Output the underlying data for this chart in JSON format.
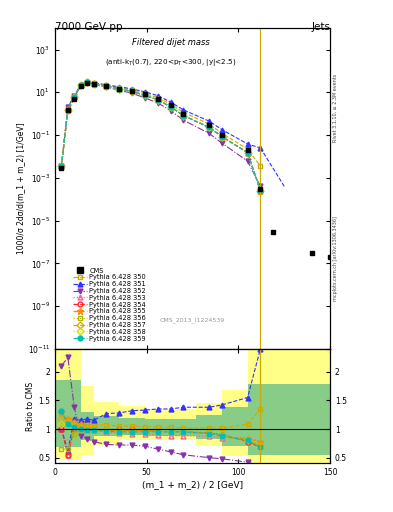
{
  "title_left": "7000 GeV pp",
  "title_right": "Jets",
  "ylabel_main": "1000/σ 2dσ/d(m_1 + m_2) [1/GeV]",
  "ylabel_ratio": "Ratio to CMS",
  "xlabel": "(m_1 + m_2) / 2 [GeV]",
  "plot_title": "Filtered dijet mass",
  "plot_subtitle": "(anti-k_{T}(0.7), 220<p_{T}<300, |y|<2.5)",
  "cms_watermark": "CMS_2013_I1224539",
  "right_label1": "Rivet 3.1.10, ≥ 2.3M events",
  "right_label2": "mcplots.cern.ch [arXiv:1306.3436]",
  "xlim": [
    0,
    150
  ],
  "ylim_main_log": [
    -11,
    4
  ],
  "ylim_ratio": [
    0.4,
    2.4
  ],
  "x_cms": [
    3.5,
    7.0,
    10.5,
    14.0,
    17.5,
    21.0,
    28.0,
    35.0,
    42.0,
    49.0,
    56.0,
    63.0,
    70.0,
    84.0,
    91.0,
    105.0,
    112.0,
    119.0,
    140.0,
    150.0
  ],
  "y_cms": [
    0.003,
    1.5,
    5.0,
    20.0,
    28.0,
    25.0,
    20.0,
    15.0,
    12.0,
    8.0,
    5.0,
    2.5,
    1.0,
    0.3,
    0.1,
    0.02,
    0.0003,
    3e-06,
    3e-07,
    2e-07
  ],
  "x_main": [
    3.5,
    7.0,
    10.5,
    14.0,
    17.5,
    21.0,
    28.0,
    35.0,
    42.0,
    49.0,
    56.0,
    63.0,
    70.0,
    84.0,
    91.0,
    105.0,
    112.0
  ],
  "series": [
    {
      "label": "Pythia 6.428 350",
      "color": "#ccaa00",
      "ls": "--",
      "marker": "s",
      "filled": false,
      "y_main": [
        0.0035,
        1.9,
        6.2,
        22.0,
        30.0,
        26.5,
        21.5,
        16.5,
        12.8,
        8.8,
        5.7,
        2.8,
        1.15,
        0.33,
        0.12,
        0.022,
        0.0035
      ],
      "y_ratio": [
        1.0,
        1.1,
        1.08,
        1.09,
        1.08,
        1.08,
        1.07,
        1.05,
        1.05,
        1.04,
        1.03,
        1.03,
        1.02,
        1.02,
        1.02,
        1.08,
        1.35
      ]
    },
    {
      "label": "Pythia 6.428 351",
      "color": "#3333ff",
      "ls": "--",
      "marker": "^",
      "filled": true,
      "y_main": [
        0.0035,
        1.9,
        6.8,
        23.0,
        31.0,
        27.5,
        22.5,
        18.0,
        14.5,
        10.5,
        7.0,
        3.5,
        1.5,
        0.45,
        0.18,
        0.038,
        0.025
      ],
      "y_ratio": [
        1.0,
        0.62,
        1.18,
        1.15,
        1.18,
        1.15,
        1.27,
        1.28,
        1.32,
        1.33,
        1.35,
        1.35,
        1.38,
        1.38,
        1.42,
        1.55,
        2.4
      ]
    },
    {
      "label": "Pythia 6.428 352",
      "color": "#8833aa",
      "ls": "-.",
      "marker": "v",
      "filled": true,
      "y_main": [
        0.0035,
        2.0,
        6.5,
        20.5,
        28.0,
        23.5,
        17.5,
        12.5,
        9.0,
        5.5,
        3.2,
        1.4,
        0.5,
        0.12,
        0.042,
        0.006,
        0.0004
      ],
      "y_ratio": [
        2.1,
        2.25,
        1.38,
        0.88,
        0.83,
        0.78,
        0.73,
        0.72,
        0.72,
        0.7,
        0.65,
        0.6,
        0.55,
        0.5,
        0.48,
        0.42,
        0.35
      ]
    },
    {
      "label": "Pythia 6.428 353",
      "color": "#ff55aa",
      "ls": ":",
      "marker": "^",
      "filled": false,
      "y_main": [
        0.0035,
        1.5,
        5.8,
        21.0,
        29.0,
        25.0,
        19.5,
        14.5,
        11.0,
        7.2,
        4.5,
        2.1,
        0.82,
        0.23,
        0.085,
        0.015,
        0.00025
      ],
      "y_ratio": [
        1.0,
        0.55,
        1.02,
        0.99,
        0.99,
        0.98,
        0.94,
        0.93,
        0.92,
        0.91,
        0.9,
        0.88,
        0.88,
        0.87,
        0.85,
        0.85,
        0.78
      ]
    },
    {
      "label": "Pythia 6.428 354",
      "color": "#ff2222",
      "ls": "--",
      "marker": "o",
      "filled": false,
      "y_main": [
        0.0035,
        1.5,
        5.8,
        21.0,
        29.0,
        25.0,
        19.5,
        14.5,
        11.0,
        7.2,
        4.5,
        2.1,
        0.82,
        0.23,
        0.085,
        0.015,
        0.00025
      ],
      "y_ratio": [
        1.0,
        0.55,
        1.02,
        0.99,
        1.02,
        0.99,
        0.96,
        0.98,
        0.98,
        0.97,
        0.96,
        0.95,
        0.95,
        0.93,
        0.9,
        0.78,
        0.68
      ]
    },
    {
      "label": "Pythia 6.428 355",
      "color": "#ff8800",
      "ls": "--",
      "marker": "*",
      "filled": true,
      "y_main": [
        0.0035,
        1.5,
        5.8,
        21.0,
        29.0,
        25.0,
        19.5,
        14.5,
        11.0,
        7.2,
        4.5,
        2.1,
        0.82,
        0.23,
        0.085,
        0.015,
        0.00025
      ],
      "y_ratio": [
        1.28,
        1.18,
        1.12,
        1.08,
        1.04,
        1.02,
        0.98,
        0.98,
        0.98,
        0.97,
        0.96,
        0.95,
        0.94,
        0.92,
        0.88,
        0.82,
        0.78
      ]
    },
    {
      "label": "Pythia 6.428 356",
      "color": "#aabb00",
      "ls": ":",
      "marker": "s",
      "filled": false,
      "y_main": [
        0.0035,
        1.5,
        5.8,
        21.0,
        29.0,
        25.0,
        19.5,
        14.5,
        11.0,
        7.2,
        4.5,
        2.1,
        0.82,
        0.23,
        0.085,
        0.015,
        0.00025
      ],
      "y_ratio": [
        0.65,
        0.65,
        0.92,
        0.98,
        0.98,
        0.98,
        0.96,
        0.95,
        0.95,
        0.95,
        0.95,
        0.95,
        0.95,
        0.94,
        0.9,
        0.82,
        0.68
      ]
    },
    {
      "label": "Pythia 6.428 357",
      "color": "#ddaa00",
      "ls": "--",
      "marker": "D",
      "filled": false,
      "y_main": [
        0.0035,
        1.5,
        5.8,
        21.0,
        29.0,
        25.0,
        19.5,
        14.5,
        11.0,
        7.2,
        4.5,
        2.1,
        0.82,
        0.23,
        0.085,
        0.015,
        0.00025
      ],
      "y_ratio": [
        1.18,
        1.12,
        1.08,
        1.03,
        1.01,
        1.0,
        0.98,
        0.97,
        0.97,
        0.97,
        0.96,
        0.95,
        0.94,
        0.92,
        0.88,
        0.8,
        0.72
      ]
    },
    {
      "label": "Pythia 6.428 358",
      "color": "#ccdd11",
      "ls": ":",
      "marker": "D",
      "filled": false,
      "y_main": [
        0.0035,
        1.5,
        5.8,
        21.0,
        29.0,
        25.0,
        19.5,
        14.5,
        11.0,
        7.2,
        4.5,
        2.1,
        0.82,
        0.23,
        0.085,
        0.015,
        0.00025
      ],
      "y_ratio": [
        1.08,
        1.08,
        1.03,
        1.0,
        0.98,
        0.98,
        0.96,
        0.95,
        0.95,
        0.95,
        0.95,
        0.95,
        0.95,
        0.92,
        0.88,
        0.8,
        0.68
      ]
    },
    {
      "label": "Pythia 6.428 359",
      "color": "#00bbbb",
      "ls": "--",
      "marker": "o",
      "filled": true,
      "y_main": [
        0.0035,
        1.5,
        5.8,
        21.0,
        29.0,
        25.0,
        19.5,
        14.5,
        11.0,
        7.2,
        4.5,
        2.1,
        0.82,
        0.23,
        0.085,
        0.015,
        0.00025
      ],
      "y_ratio": [
        1.32,
        1.08,
        1.03,
        1.0,
        0.98,
        0.98,
        0.96,
        0.95,
        0.95,
        0.95,
        0.95,
        0.95,
        0.95,
        0.92,
        0.88,
        0.8,
        0.68
      ]
    }
  ],
  "band_x_edges": [
    0,
    7,
    14,
    21,
    35,
    49,
    63,
    77,
    91,
    105,
    112,
    150
  ],
  "yellow_low": [
    0.45,
    0.45,
    0.55,
    0.72,
    0.8,
    0.8,
    0.8,
    0.7,
    0.52,
    0.38,
    0.38,
    0.38
  ],
  "yellow_high": [
    2.4,
    2.4,
    1.75,
    1.48,
    1.4,
    1.35,
    1.35,
    1.45,
    1.68,
    2.4,
    2.4,
    2.4
  ],
  "green_low": [
    0.68,
    0.68,
    0.8,
    0.87,
    0.9,
    0.88,
    0.88,
    0.82,
    0.7,
    0.55,
    0.55,
    0.55
  ],
  "green_high": [
    1.85,
    1.85,
    1.3,
    1.23,
    1.2,
    1.17,
    1.17,
    1.24,
    1.38,
    1.78,
    1.78,
    1.78
  ]
}
